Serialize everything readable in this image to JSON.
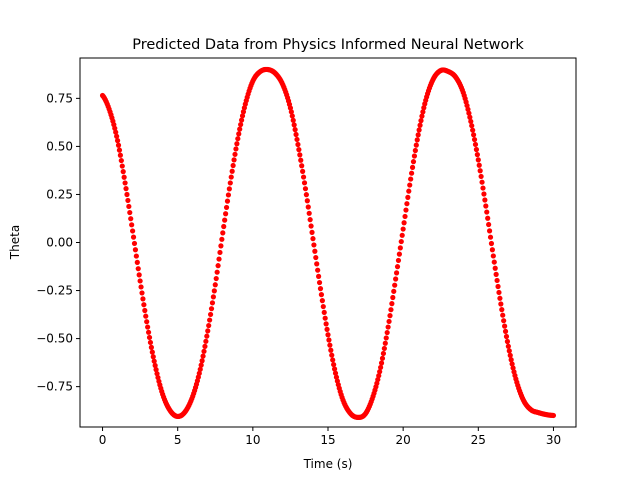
{
  "chart_data": {
    "type": "scatter",
    "title": "Predicted Data from Physics Informed Neural Network",
    "xlabel": "Time (s)",
    "ylabel": "Theta",
    "xlim": [
      -1.5,
      31.5
    ],
    "ylim": [
      -0.96,
      0.96
    ],
    "x_ticks": [
      0,
      5,
      10,
      15,
      20,
      25,
      30
    ],
    "x_tick_labels": [
      "0",
      "5",
      "10",
      "15",
      "20",
      "25",
      "30"
    ],
    "y_ticks": [
      0.75,
      0.5,
      0.25,
      0.0,
      -0.25,
      -0.5,
      -0.75
    ],
    "y_tick_labels": [
      "0.75",
      "0.50",
      "0.25",
      "0.00",
      "−0.25",
      "−0.50",
      "−0.75"
    ],
    "grid": false,
    "legend": "none",
    "series": [
      {
        "color": "#ff0000",
        "marker": "circle",
        "x": [
          0.0,
          0.5,
          1.0,
          1.5,
          2.0,
          2.5,
          3.0,
          3.5,
          4.0,
          4.5,
          5.0,
          5.5,
          6.0,
          6.5,
          7.0,
          7.5,
          8.0,
          8.5,
          9.0,
          9.5,
          10.0,
          10.5,
          11.0,
          11.5,
          12.0,
          12.5,
          13.0,
          13.5,
          14.0,
          14.5,
          15.0,
          15.5,
          16.0,
          16.5,
          17.0,
          17.5,
          18.0,
          18.5,
          19.0,
          19.5,
          20.0,
          20.5,
          21.0,
          21.5,
          22.0,
          22.5,
          23.0,
          23.5,
          24.0,
          24.5,
          25.0,
          25.5,
          26.0,
          26.5,
          27.0,
          27.5,
          28.0,
          28.5,
          29.0,
          29.5,
          30.0
        ],
        "y": [
          0.765,
          0.68,
          0.53,
          0.31,
          0.06,
          -0.2,
          -0.44,
          -0.64,
          -0.79,
          -0.875,
          -0.905,
          -0.88,
          -0.8,
          -0.66,
          -0.46,
          -0.22,
          0.05,
          0.31,
          0.54,
          0.72,
          0.84,
          0.89,
          0.9,
          0.88,
          0.82,
          0.7,
          0.51,
          0.28,
          0.02,
          -0.24,
          -0.48,
          -0.68,
          -0.82,
          -0.89,
          -0.91,
          -0.89,
          -0.8,
          -0.65,
          -0.44,
          -0.19,
          0.07,
          0.33,
          0.56,
          0.74,
          0.85,
          0.895,
          0.89,
          0.86,
          0.78,
          0.63,
          0.43,
          0.19,
          -0.07,
          -0.32,
          -0.54,
          -0.71,
          -0.82,
          -0.87,
          -0.885,
          -0.895,
          -0.9
        ]
      }
    ]
  }
}
